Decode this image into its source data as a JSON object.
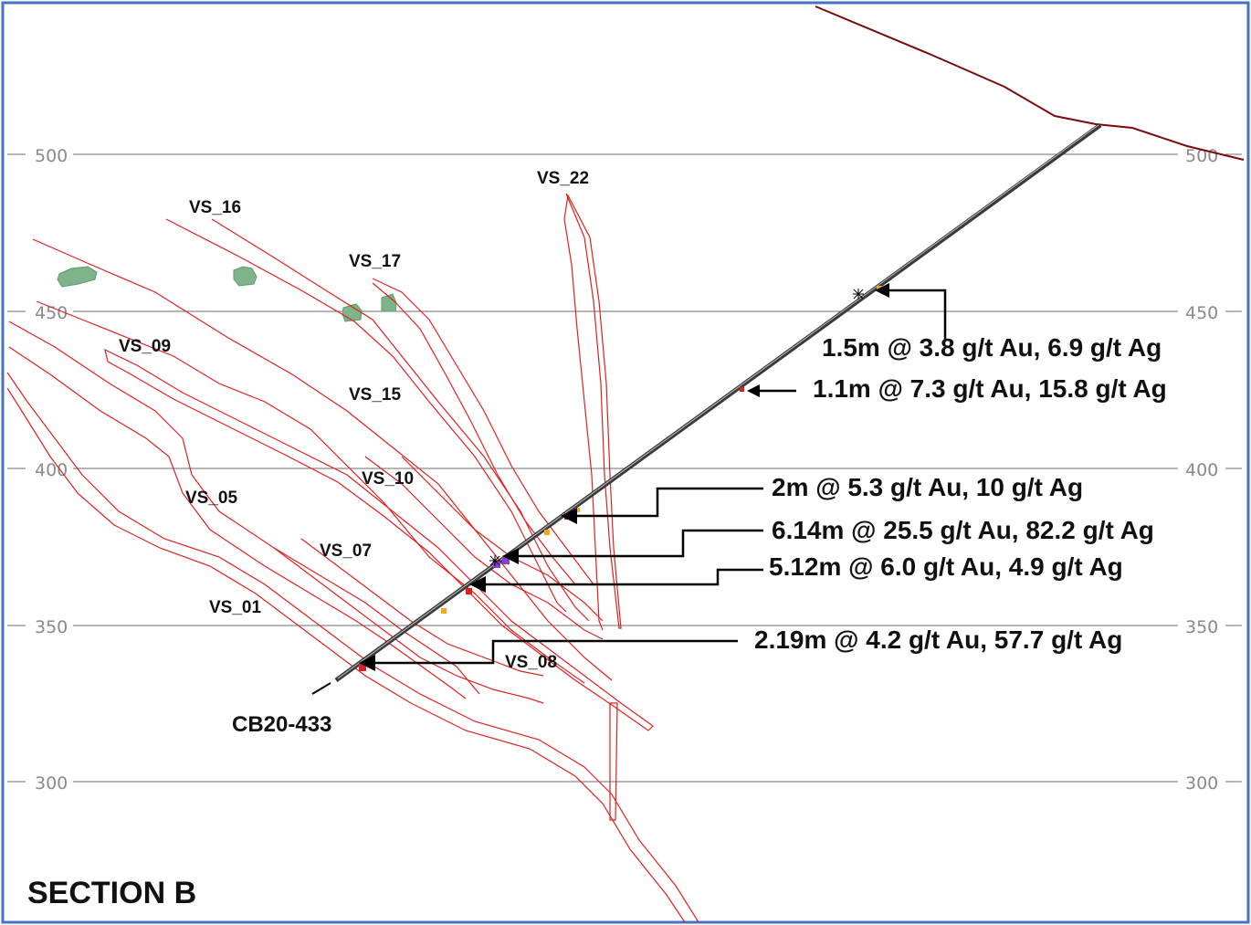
{
  "section": {
    "title": "SECTION B"
  },
  "drillhole": {
    "id": "CB20-433"
  },
  "elevation_grid": {
    "levels": [
      500,
      450,
      400,
      350,
      300
    ],
    "labels": [
      "500",
      "450",
      "400",
      "350",
      "300"
    ]
  },
  "veins": [
    "VS_22",
    "VS_16",
    "VS_17",
    "VS_09",
    "VS_15",
    "VS_10",
    "VS_05",
    "VS_07",
    "VS_01",
    "VS_08"
  ],
  "intercepts": [
    "1.5m @ 3.8 g/t Au, 6.9 g/t Ag",
    "1.1m @ 7.3 g/t Au, 15.8 g/t Ag",
    "2m @ 5.3 g/t Au, 10 g/t Ag",
    "6.14m @ 25.5 g/t Au, 82.2 g/t Ag",
    "5.12m @ 6.0 g/t Au, 4.9 g/t Ag",
    "2.19m @ 4.2 g/t Au, 57.7 g/t Ag"
  ],
  "colors": {
    "frame": "#4472c4",
    "vein": "#e02020",
    "topography": "#7b0a0a",
    "drillhole": "#3a3a3a",
    "grid": "#6e6e6e",
    "ore_shape": "#7fb38a",
    "arrow": "#000000"
  }
}
